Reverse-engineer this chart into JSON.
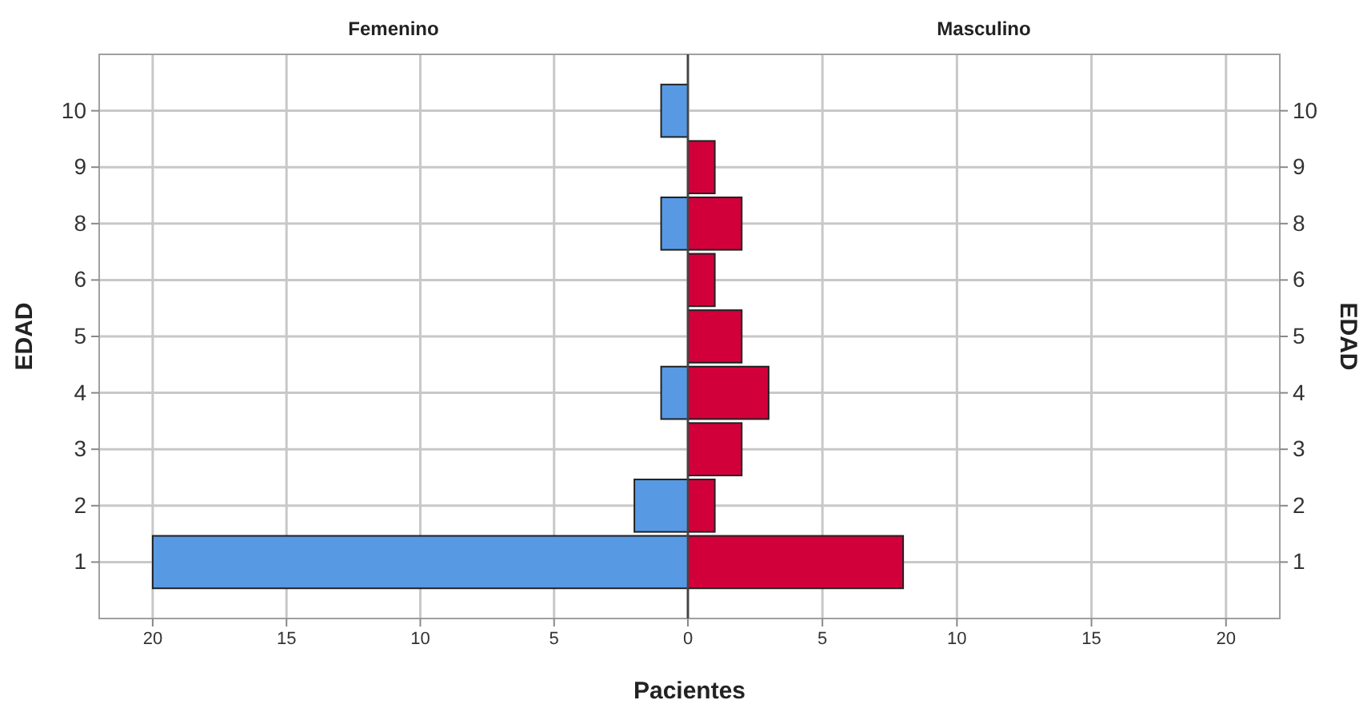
{
  "chart_data": [
    {
      "type": "bar",
      "orientation": "horizontal",
      "title": "Femenino",
      "xlabel": "Pacientes",
      "ylabel": "EDAD",
      "categories": [
        "10",
        "9",
        "8",
        "6",
        "5",
        "4",
        "3",
        "2",
        "1"
      ],
      "series": [
        {
          "color": "#5899e3",
          "values": [
            1,
            null,
            1,
            null,
            null,
            1,
            null,
            2,
            20
          ]
        }
      ],
      "xlim": [
        22,
        0
      ],
      "xticks": [
        20,
        15,
        10,
        5,
        0
      ],
      "grid": true
    },
    {
      "type": "bar",
      "orientation": "horizontal",
      "title": "Masculino",
      "ylabel": "EDAD",
      "categories": [
        "10",
        "9",
        "8",
        "6",
        "5",
        "4",
        "3",
        "2",
        "1"
      ],
      "series": [
        {
          "color": "#d2003a",
          "values": [
            null,
            1,
            2,
            1,
            2,
            3,
            2,
            1,
            8
          ]
        }
      ],
      "xlim": [
        0,
        22
      ],
      "xticks": [
        5,
        10,
        15,
        20
      ],
      "grid": true
    }
  ]
}
